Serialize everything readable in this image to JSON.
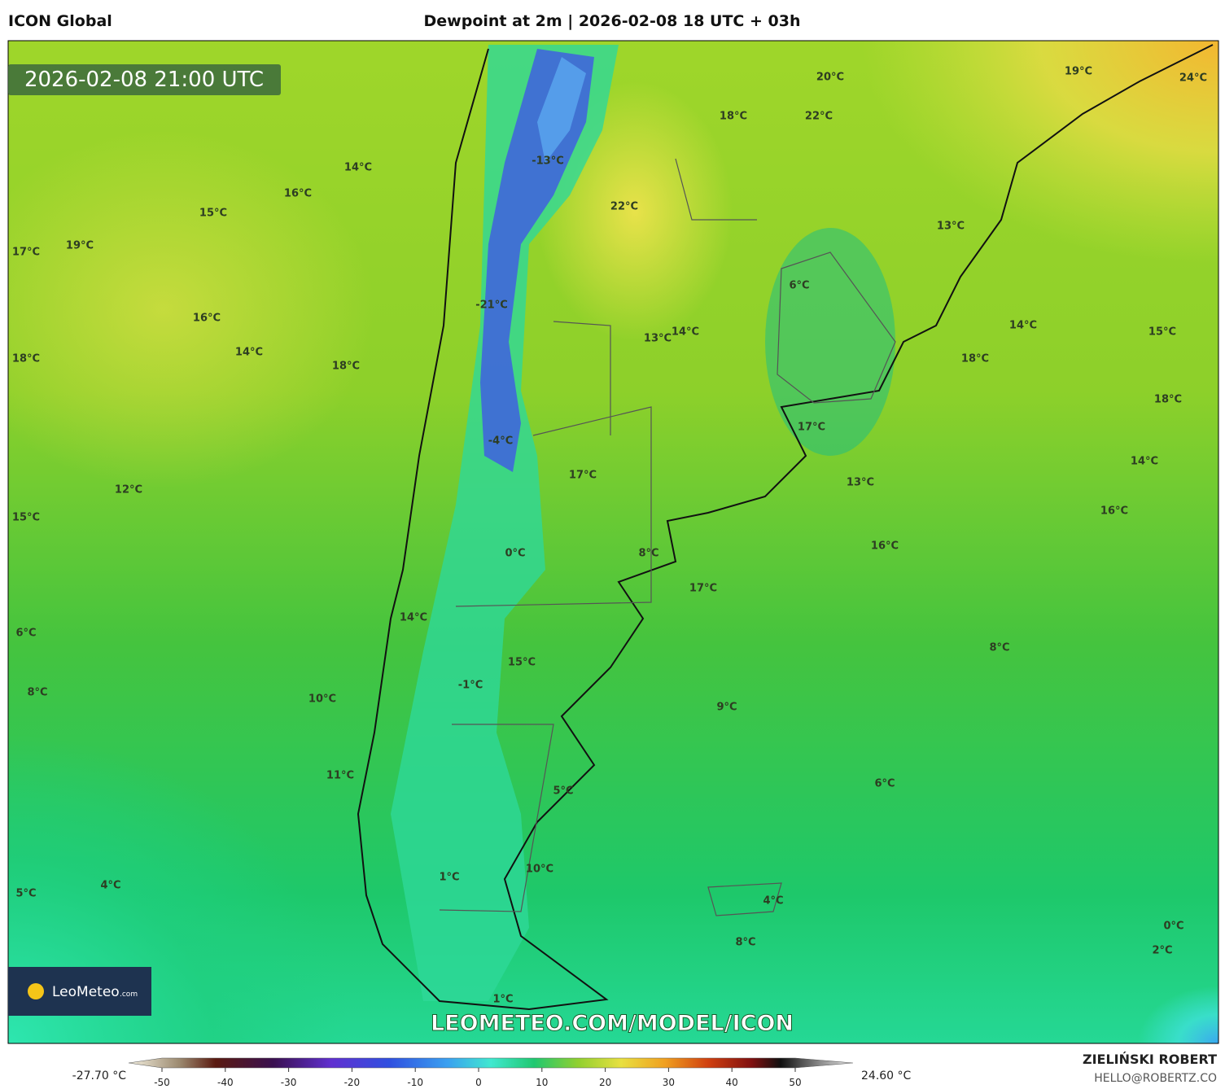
{
  "header": {
    "model": "ICON Global",
    "title": "Dewpoint at 2m | 2026-02-08 18 UTC + 03h"
  },
  "map": {
    "valid_time": "2026-02-08 21:00 UTC",
    "labels": [
      "20°C",
      "19°C",
      "24°C",
      "18°C",
      "22°C",
      "-13°C",
      "14°C",
      "16°C",
      "22°C",
      "15°C",
      "13°C",
      "17°C",
      "19°C",
      "6°C",
      "-21°C",
      "16°C",
      "14°C",
      "13°C",
      "14°C",
      "15°C",
      "14°C",
      "18°C",
      "18°C",
      "18°C",
      "18°C",
      "17°C",
      "-4°C",
      "14°C",
      "17°C",
      "13°C",
      "12°C",
      "15°C",
      "16°C",
      "16°C",
      "0°C",
      "8°C",
      "17°C",
      "14°C",
      "6°C",
      "8°C",
      "15°C",
      "-1°C",
      "8°C",
      "10°C",
      "9°C",
      "11°C",
      "6°C",
      "5°C",
      "10°C",
      "1°C",
      "4°C",
      "5°C",
      "4°C",
      "0°C",
      "8°C",
      "2°C",
      "1°C"
    ],
    "watermark": "LEOMETEO.COM/MODEL/ICON",
    "logo": {
      "name": "LeoMeteo",
      "suffix": ".com"
    }
  },
  "colorbar": {
    "min_label": "-27.70 °C",
    "max_label": "24.60 °C",
    "ticks": [
      -50,
      -40,
      -30,
      -20,
      -10,
      0,
      10,
      20,
      30,
      40,
      50
    ]
  },
  "footer": {
    "author": "ZIELIŃSKI ROBERT",
    "contact": "HELLO@ROBERTZ.CO"
  }
}
